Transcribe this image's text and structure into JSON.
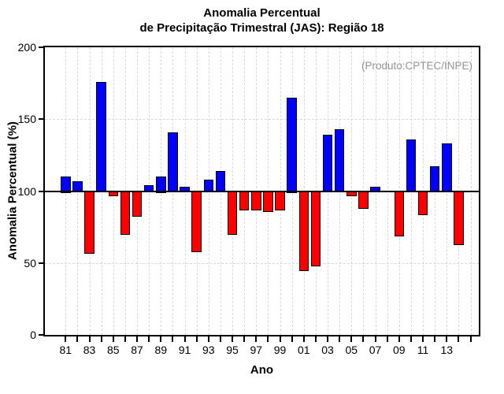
{
  "title": {
    "line1": "Anomalia Percentual",
    "line2": "de Precipitação Trimestral (JAS): Região 18"
  },
  "annotation": "(Produto:CPTEC/INPE)",
  "axes": {
    "y_label": "Anomalia Percentual (%)",
    "x_label": "Ano"
  },
  "colors": {
    "positive_bar": "#0000ff",
    "negative_bar": "#ff0000",
    "bar_border": "#000000",
    "grid": "#d8d8d8",
    "baseline": "#000000",
    "annotation_text": "#949494"
  },
  "chart_data": {
    "type": "bar",
    "title": "Anomalia Percentual de Precipitação Trimestral (JAS): Região 18",
    "xlabel": "Ano",
    "ylabel": "Anomalia Percentual (%)",
    "ylim": [
      0,
      200
    ],
    "yticks": [
      0,
      50,
      100,
      150,
      200
    ],
    "baseline": 100,
    "horizontal_gridlines": [
      50,
      150
    ],
    "grid_style": "light-gray dashed vertical line at every year, dashed horizontal at 50 and 150, solid black line at 100",
    "legend_position": "none",
    "categories": [
      "81",
      "82",
      "83",
      "84",
      "85",
      "86",
      "87",
      "88",
      "89",
      "90",
      "91",
      "92",
      "93",
      "94",
      "95",
      "96",
      "97",
      "98",
      "99",
      "00",
      "01",
      "02",
      "03",
      "04",
      "05",
      "06",
      "07",
      "08",
      "09",
      "10",
      "11",
      "12",
      "13",
      "14"
    ],
    "values": [
      110,
      107,
      57,
      176,
      97,
      70,
      83,
      104,
      110,
      141,
      103,
      58,
      108,
      114,
      70,
      87,
      87,
      86,
      87,
      165,
      45,
      48,
      139,
      143,
      97,
      88,
      103,
      100,
      69,
      136,
      84,
      117,
      133,
      63
    ],
    "x_tick_labels": [
      "81",
      "83",
      "85",
      "87",
      "89",
      "91",
      "93",
      "95",
      "97",
      "99",
      "01",
      "03",
      "05",
      "07",
      "09",
      "11",
      "13"
    ],
    "bar_color_rule": "blue if value > 100, red if value < 100, no bar if value = 100"
  }
}
